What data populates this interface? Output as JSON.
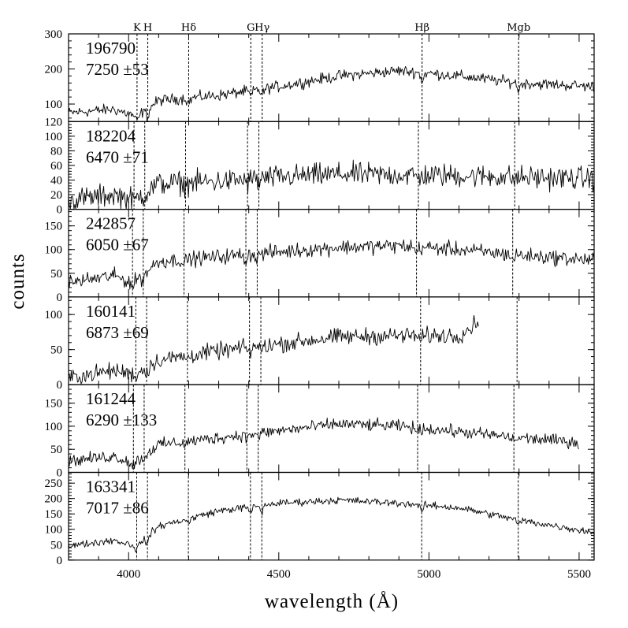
{
  "chart_data": {
    "type": "line",
    "xlabel": "wavelength (Å)",
    "ylabel": "counts",
    "xlim": [
      3800,
      5550
    ],
    "x_ticks": [
      4000,
      4500,
      5000,
      5500
    ],
    "features": [
      {
        "name": "K",
        "wavelength": 3934
      },
      {
        "name": "H",
        "wavelength": 3969
      },
      {
        "name": "Hδ",
        "wavelength": 4102
      },
      {
        "name": "G",
        "wavelength": 4304
      },
      {
        "name": "Hγ",
        "wavelength": 4341
      },
      {
        "name": "Hβ",
        "wavelength": 4861
      },
      {
        "name": "Mgb",
        "wavelength": 5175
      }
    ],
    "panels": [
      {
        "id": "196790",
        "velocity": "7250",
        "error": "±53",
        "ylim": [
          50,
          300
        ],
        "y_ticks": [
          100,
          200,
          300
        ],
        "x_end": 5550,
        "redshift_wavelength": 4028,
        "profile": [
          [
            3800,
            75
          ],
          [
            3950,
            85
          ],
          [
            4028,
            65
          ],
          [
            4100,
            110
          ],
          [
            4300,
            125
          ],
          [
            4500,
            150
          ],
          [
            4700,
            180
          ],
          [
            4900,
            195
          ],
          [
            5100,
            180
          ],
          [
            5300,
            160
          ],
          [
            5550,
            150
          ]
        ],
        "noise": 12
      },
      {
        "id": "182204",
        "velocity": "6470",
        "error": "±71",
        "ylim": [
          0,
          120
        ],
        "y_ticks": [
          0,
          20,
          40,
          60,
          80,
          100,
          120
        ],
        "x_end": 5550,
        "redshift_wavelength": 4018,
        "profile": [
          [
            3800,
            12
          ],
          [
            3950,
            20
          ],
          [
            4018,
            14
          ],
          [
            4100,
            35
          ],
          [
            4300,
            38
          ],
          [
            4500,
            44
          ],
          [
            4700,
            48
          ],
          [
            4900,
            47
          ],
          [
            5100,
            46
          ],
          [
            5300,
            44
          ],
          [
            5550,
            42
          ]
        ],
        "noise": 12
      },
      {
        "id": "242857",
        "velocity": "6050",
        "error": "±67",
        "ylim": [
          0,
          185
        ],
        "y_ticks": [
          0,
          50,
          100,
          150
        ],
        "x_end": 5550,
        "redshift_wavelength": 4013,
        "profile": [
          [
            3800,
            30
          ],
          [
            3950,
            45
          ],
          [
            4013,
            30
          ],
          [
            4100,
            75
          ],
          [
            4300,
            85
          ],
          [
            4500,
            95
          ],
          [
            4700,
            105
          ],
          [
            4900,
            108
          ],
          [
            5100,
            100
          ],
          [
            5300,
            88
          ],
          [
            5550,
            78
          ]
        ],
        "noise": 12
      },
      {
        "id": "160141",
        "velocity": "6873",
        "error": "±69",
        "ylim": [
          0,
          125
        ],
        "y_ticks": [
          0,
          50,
          100
        ],
        "x_end": 5165,
        "redshift_wavelength": 4024,
        "profile": [
          [
            3800,
            10
          ],
          [
            3950,
            20
          ],
          [
            4024,
            15
          ],
          [
            4100,
            35
          ],
          [
            4300,
            48
          ],
          [
            4500,
            58
          ],
          [
            4700,
            68
          ],
          [
            4900,
            70
          ],
          [
            5100,
            70
          ],
          [
            5165,
            90
          ]
        ],
        "noise": 9
      },
      {
        "id": "161244",
        "velocity": "6290",
        "error": "±133",
        "ylim": [
          0,
          190
        ],
        "y_ticks": [
          0,
          50,
          100,
          150
        ],
        "x_end": 5500,
        "redshift_wavelength": 4016,
        "profile": [
          [
            3800,
            25
          ],
          [
            3950,
            35
          ],
          [
            4016,
            20
          ],
          [
            4100,
            60
          ],
          [
            4300,
            75
          ],
          [
            4500,
            90
          ],
          [
            4700,
            105
          ],
          [
            4900,
            100
          ],
          [
            5100,
            88
          ],
          [
            5300,
            75
          ],
          [
            5500,
            65
          ]
        ],
        "noise": 10
      },
      {
        "id": "163341",
        "velocity": "7017",
        "error": "±86",
        "ylim": [
          0,
          285
        ],
        "y_ticks": [
          0,
          50,
          100,
          150,
          200,
          250
        ],
        "x_end": 5550,
        "redshift_wavelength": 4027,
        "profile": [
          [
            3800,
            45
          ],
          [
            3950,
            65
          ],
          [
            4027,
            45
          ],
          [
            4100,
            110
          ],
          [
            4300,
            160
          ],
          [
            4500,
            185
          ],
          [
            4700,
            195
          ],
          [
            4900,
            185
          ],
          [
            5100,
            170
          ],
          [
            5300,
            130
          ],
          [
            5550,
            90
          ]
        ],
        "noise": 9
      }
    ]
  }
}
